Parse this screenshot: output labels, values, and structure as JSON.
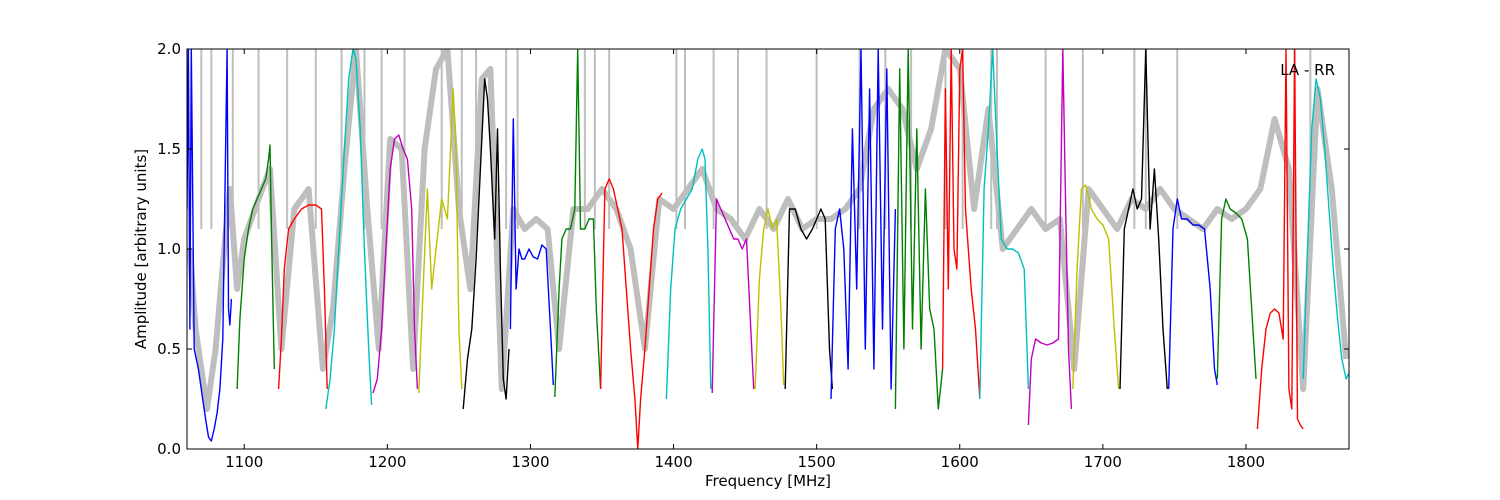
{
  "chart_data": {
    "type": "line",
    "title": "",
    "xlabel": "Frequency [MHz]",
    "ylabel": "Amplitude [arbitrary units]",
    "xlim": [
      1060,
      1872
    ],
    "ylim": [
      0,
      2
    ],
    "grid": false,
    "annotation": "LA - RR",
    "x_ticks": [
      1100,
      1200,
      1300,
      1400,
      1500,
      1600,
      1700,
      1800
    ],
    "x_tick_labels": [
      "1100",
      "1200",
      "1300",
      "1400",
      "1500",
      "1600",
      "1700",
      "1800"
    ],
    "y_ticks": [
      0.0,
      0.5,
      1.0,
      1.5,
      2.0
    ],
    "y_tick_labels": [
      "0.0",
      "0.5",
      "1.0",
      "1.5",
      "2.0"
    ],
    "background": {
      "color": "#bebebe",
      "x": [
        1062,
        1066,
        1074,
        1080,
        1086,
        1090,
        1095,
        1100,
        1110,
        1118,
        1126,
        1135,
        1145,
        1155,
        1162,
        1170,
        1178,
        1186,
        1194,
        1202,
        1210,
        1218,
        1226,
        1234,
        1242,
        1250,
        1258,
        1266,
        1272,
        1280,
        1288,
        1296,
        1304,
        1312,
        1320,
        1330,
        1340,
        1350,
        1360,
        1370,
        1380,
        1390,
        1400,
        1410,
        1420,
        1430,
        1440,
        1450,
        1460,
        1470,
        1480,
        1490,
        1500,
        1510,
        1520,
        1530,
        1540,
        1550,
        1560,
        1570,
        1580,
        1590,
        1600,
        1610,
        1620,
        1630,
        1640,
        1650,
        1660,
        1670,
        1680,
        1690,
        1700,
        1710,
        1720,
        1730,
        1740,
        1750,
        1760,
        1770,
        1780,
        1790,
        1800,
        1810,
        1820,
        1830,
        1840,
        1850,
        1860,
        1870
      ],
      "values": [
        1.0,
        0.6,
        0.2,
        0.5,
        1.0,
        1.3,
        0.8,
        1.05,
        1.25,
        1.4,
        0.5,
        1.2,
        1.3,
        0.4,
        0.7,
        1.4,
        2.0,
        1.2,
        0.5,
        1.55,
        1.5,
        0.4,
        1.5,
        1.9,
        2.0,
        1.2,
        0.8,
        1.85,
        1.9,
        0.3,
        1.2,
        1.1,
        1.15,
        1.1,
        0.5,
        1.2,
        1.2,
        1.3,
        1.2,
        1.0,
        0.5,
        1.25,
        1.2,
        1.3,
        1.4,
        1.2,
        1.15,
        1.05,
        1.2,
        1.1,
        1.25,
        1.1,
        1.15,
        1.15,
        1.2,
        1.3,
        1.7,
        1.8,
        1.7,
        1.4,
        1.6,
        2.0,
        1.9,
        1.2,
        1.7,
        1.0,
        1.1,
        1.2,
        1.1,
        1.15,
        0.4,
        1.3,
        1.2,
        1.1,
        1.25,
        1.2,
        1.3,
        1.2,
        1.15,
        1.1,
        1.2,
        1.15,
        1.2,
        1.3,
        1.65,
        1.4,
        0.3,
        1.8,
        1.3,
        0.45
      ],
      "spikes": [
        1070,
        1077,
        1092,
        1110,
        1130,
        1150,
        1168,
        1184,
        1196,
        1212,
        1238,
        1252,
        1262,
        1283,
        1291,
        1338,
        1345,
        1355,
        1402,
        1408,
        1428,
        1445,
        1465,
        1500,
        1530,
        1548,
        1566,
        1590,
        1602,
        1622,
        1626,
        1660,
        1686,
        1722,
        1730,
        1752,
        1834,
        1845
      ]
    },
    "series": [
      {
        "color": "#0000ff",
        "x": [
          1060,
          1061,
          1062,
          1063,
          1065,
          1068,
          1071,
          1073,
          1075,
          1077,
          1079,
          1081,
          1083,
          1085,
          1087,
          1088,
          1089,
          1090,
          1091
        ],
        "y": [
          1.2,
          2.0,
          0.6,
          2.0,
          0.5,
          0.4,
          0.25,
          0.15,
          0.06,
          0.04,
          0.1,
          0.18,
          0.3,
          0.55,
          1.5,
          2.0,
          0.7,
          0.62,
          0.75
        ]
      },
      {
        "color": "#008000",
        "x": [
          1095,
          1097,
          1100,
          1103,
          1106,
          1109,
          1112,
          1115,
          1117,
          1118,
          1119,
          1121
        ],
        "y": [
          0.3,
          0.65,
          0.95,
          1.1,
          1.2,
          1.25,
          1.3,
          1.35,
          1.45,
          1.52,
          1.1,
          0.4
        ]
      },
      {
        "color": "#ff0000",
        "x": [
          1124,
          1126,
          1128,
          1131,
          1135,
          1140,
          1145,
          1150,
          1154,
          1156,
          1158
        ],
        "y": [
          0.3,
          0.55,
          0.9,
          1.1,
          1.15,
          1.2,
          1.22,
          1.22,
          1.2,
          0.8,
          0.3
        ]
      },
      {
        "color": "#00bfbf",
        "x": [
          1157,
          1160,
          1163,
          1166,
          1170,
          1173,
          1176,
          1178,
          1181,
          1184,
          1187,
          1189
        ],
        "y": [
          0.2,
          0.35,
          0.6,
          1.0,
          1.5,
          1.85,
          2.0,
          1.95,
          1.6,
          1.0,
          0.5,
          0.22
        ]
      },
      {
        "color": "#bf00bf",
        "x": [
          1190,
          1193,
          1196,
          1199,
          1202,
          1205,
          1208,
          1211,
          1214,
          1217,
          1219,
          1221
        ],
        "y": [
          0.28,
          0.35,
          0.6,
          1.0,
          1.4,
          1.55,
          1.57,
          1.5,
          1.45,
          1.2,
          0.6,
          0.3
        ]
      },
      {
        "color": "#bfbf00",
        "x": [
          1222,
          1225,
          1228,
          1231,
          1234,
          1238,
          1242,
          1246,
          1248,
          1250,
          1252
        ],
        "y": [
          0.28,
          0.8,
          1.3,
          0.8,
          1.0,
          1.25,
          1.15,
          1.8,
          1.5,
          0.6,
          0.3
        ]
      },
      {
        "color": "#000000",
        "x": [
          1253,
          1256,
          1259,
          1262,
          1265,
          1268,
          1270,
          1272,
          1275,
          1277,
          1279,
          1281,
          1283,
          1285
        ],
        "y": [
          0.2,
          0.45,
          0.6,
          0.95,
          1.4,
          1.85,
          1.75,
          1.5,
          1.05,
          1.6,
          0.9,
          0.35,
          0.25,
          0.5
        ]
      },
      {
        "color": "#0000ff",
        "x": [
          1286,
          1288,
          1290,
          1292,
          1294,
          1296,
          1299,
          1302,
          1305,
          1308,
          1311,
          1314,
          1316
        ],
        "y": [
          0.6,
          1.65,
          0.8,
          1.0,
          0.95,
          0.95,
          1.0,
          0.96,
          0.95,
          1.02,
          1.0,
          0.6,
          0.32
        ]
      },
      {
        "color": "#008000",
        "x": [
          1317,
          1320,
          1322,
          1325,
          1328,
          1331,
          1333,
          1335,
          1338,
          1341,
          1344,
          1346,
          1349
        ],
        "y": [
          0.26,
          0.8,
          1.05,
          1.1,
          1.1,
          1.2,
          2.0,
          1.1,
          1.1,
          1.15,
          1.15,
          0.7,
          0.3
        ]
      },
      {
        "color": "#ff0000",
        "x": [
          1349,
          1352,
          1355,
          1358,
          1361,
          1364,
          1367,
          1370,
          1373,
          1375,
          1377,
          1380,
          1383,
          1386,
          1389,
          1392
        ],
        "y": [
          0.3,
          1.3,
          1.35,
          1.3,
          1.2,
          1.1,
          0.8,
          0.5,
          0.25,
          0.0,
          0.25,
          0.5,
          0.8,
          1.1,
          1.25,
          1.28
        ]
      },
      {
        "color": "#00bfbf",
        "x": [
          1395,
          1398,
          1401,
          1405,
          1409,
          1413,
          1417,
          1420,
          1422,
          1424,
          1426
        ],
        "y": [
          0.25,
          0.8,
          1.1,
          1.2,
          1.25,
          1.3,
          1.45,
          1.5,
          1.45,
          1.0,
          0.3
        ]
      },
      {
        "color": "#bf00bf",
        "x": [
          1427,
          1430,
          1433,
          1436,
          1439,
          1442,
          1445,
          1448,
          1451,
          1454,
          1456
        ],
        "y": [
          0.28,
          1.25,
          1.2,
          1.15,
          1.1,
          1.05,
          1.05,
          1.0,
          1.05,
          0.6,
          0.3
        ]
      },
      {
        "color": "#bfbf00",
        "x": [
          1457,
          1460,
          1463,
          1466,
          1469,
          1472,
          1475,
          1477
        ],
        "y": [
          0.3,
          0.85,
          1.1,
          1.2,
          1.1,
          1.15,
          0.7,
          0.32
        ]
      },
      {
        "color": "#000000",
        "x": [
          1478,
          1481,
          1485,
          1489,
          1493,
          1497,
          1500,
          1503,
          1506,
          1509,
          1511
        ],
        "y": [
          0.3,
          1.2,
          1.2,
          1.1,
          1.05,
          1.1,
          1.15,
          1.2,
          1.15,
          0.5,
          0.3
        ]
      },
      {
        "color": "#0000ff",
        "x": [
          1510,
          1513,
          1516,
          1519,
          1522,
          1525,
          1528,
          1531,
          1534,
          1537,
          1540,
          1543,
          1546,
          1549,
          1552,
          1555
        ],
        "y": [
          0.25,
          1.1,
          1.2,
          1.0,
          0.4,
          1.6,
          0.8,
          2.0,
          0.5,
          1.8,
          0.4,
          2.0,
          0.6,
          1.9,
          0.3,
          1.2
        ]
      },
      {
        "color": "#008000",
        "x": [
          1555,
          1558,
          1561,
          1564,
          1567,
          1570,
          1573,
          1576,
          1579,
          1582,
          1585,
          1588
        ],
        "y": [
          0.2,
          1.9,
          0.5,
          2.0,
          0.6,
          1.6,
          0.5,
          1.3,
          0.7,
          0.6,
          0.2,
          0.4
        ]
      },
      {
        "color": "#ff0000",
        "x": [
          1588,
          1590,
          1592,
          1594,
          1596,
          1598,
          1600,
          1602,
          1604,
          1606,
          1608,
          1611,
          1614
        ],
        "y": [
          0.4,
          1.8,
          0.8,
          2.0,
          1.0,
          0.9,
          1.9,
          2.0,
          1.2,
          1.0,
          0.8,
          0.6,
          0.25
        ]
      },
      {
        "color": "#00bfbf",
        "x": [
          1614,
          1617,
          1620,
          1623,
          1626,
          1629,
          1633,
          1637,
          1641,
          1645,
          1648
        ],
        "y": [
          0.25,
          1.3,
          1.6,
          2.0,
          1.5,
          1.05,
          1.0,
          1.0,
          0.98,
          0.9,
          0.3
        ]
      },
      {
        "color": "#bf00bf",
        "x": [
          1648,
          1650,
          1653,
          1657,
          1661,
          1665,
          1669,
          1672,
          1674,
          1676,
          1678
        ],
        "y": [
          0.12,
          0.45,
          0.55,
          0.53,
          0.52,
          0.53,
          0.55,
          2.0,
          1.2,
          0.5,
          0.2
        ]
      },
      {
        "color": "#bfbf00",
        "x": [
          1679,
          1682,
          1685,
          1688,
          1692,
          1696,
          1700,
          1704,
          1708,
          1711
        ],
        "y": [
          0.3,
          0.9,
          1.3,
          1.32,
          1.2,
          1.15,
          1.12,
          1.05,
          0.6,
          0.3
        ]
      },
      {
        "color": "#000000",
        "x": [
          1712,
          1715,
          1718,
          1721,
          1724,
          1727,
          1730,
          1733,
          1736,
          1739,
          1742,
          1745
        ],
        "y": [
          0.3,
          1.1,
          1.2,
          1.3,
          1.2,
          1.25,
          2.0,
          1.1,
          1.4,
          1.05,
          0.6,
          0.3
        ]
      },
      {
        "color": "#0000ff",
        "x": [
          1746,
          1749,
          1752,
          1755,
          1759,
          1763,
          1767,
          1771,
          1775,
          1778,
          1780
        ],
        "y": [
          0.3,
          1.1,
          1.25,
          1.15,
          1.15,
          1.12,
          1.12,
          1.1,
          0.8,
          0.4,
          0.32
        ]
      },
      {
        "color": "#008000",
        "x": [
          1780,
          1783,
          1786,
          1789,
          1793,
          1797,
          1801,
          1804,
          1807
        ],
        "y": [
          0.35,
          1.15,
          1.25,
          1.2,
          1.18,
          1.15,
          1.05,
          0.7,
          0.35
        ]
      },
      {
        "color": "#ff0000",
        "x": [
          1808,
          1811,
          1814,
          1817,
          1820,
          1823,
          1826,
          1828,
          1830,
          1832,
          1834,
          1836,
          1838,
          1840
        ],
        "y": [
          0.1,
          0.4,
          0.6,
          0.68,
          0.7,
          0.68,
          0.55,
          2.0,
          0.3,
          0.2,
          2.0,
          0.15,
          0.12,
          0.1
        ]
      },
      {
        "color": "#00bfbf",
        "x": [
          1840,
          1843,
          1846,
          1849,
          1852,
          1855,
          1858,
          1861,
          1864,
          1867,
          1870,
          1872
        ],
        "y": [
          0.35,
          1.0,
          1.6,
          1.85,
          1.75,
          1.5,
          1.2,
          0.9,
          0.65,
          0.45,
          0.35,
          0.38
        ]
      }
    ]
  }
}
